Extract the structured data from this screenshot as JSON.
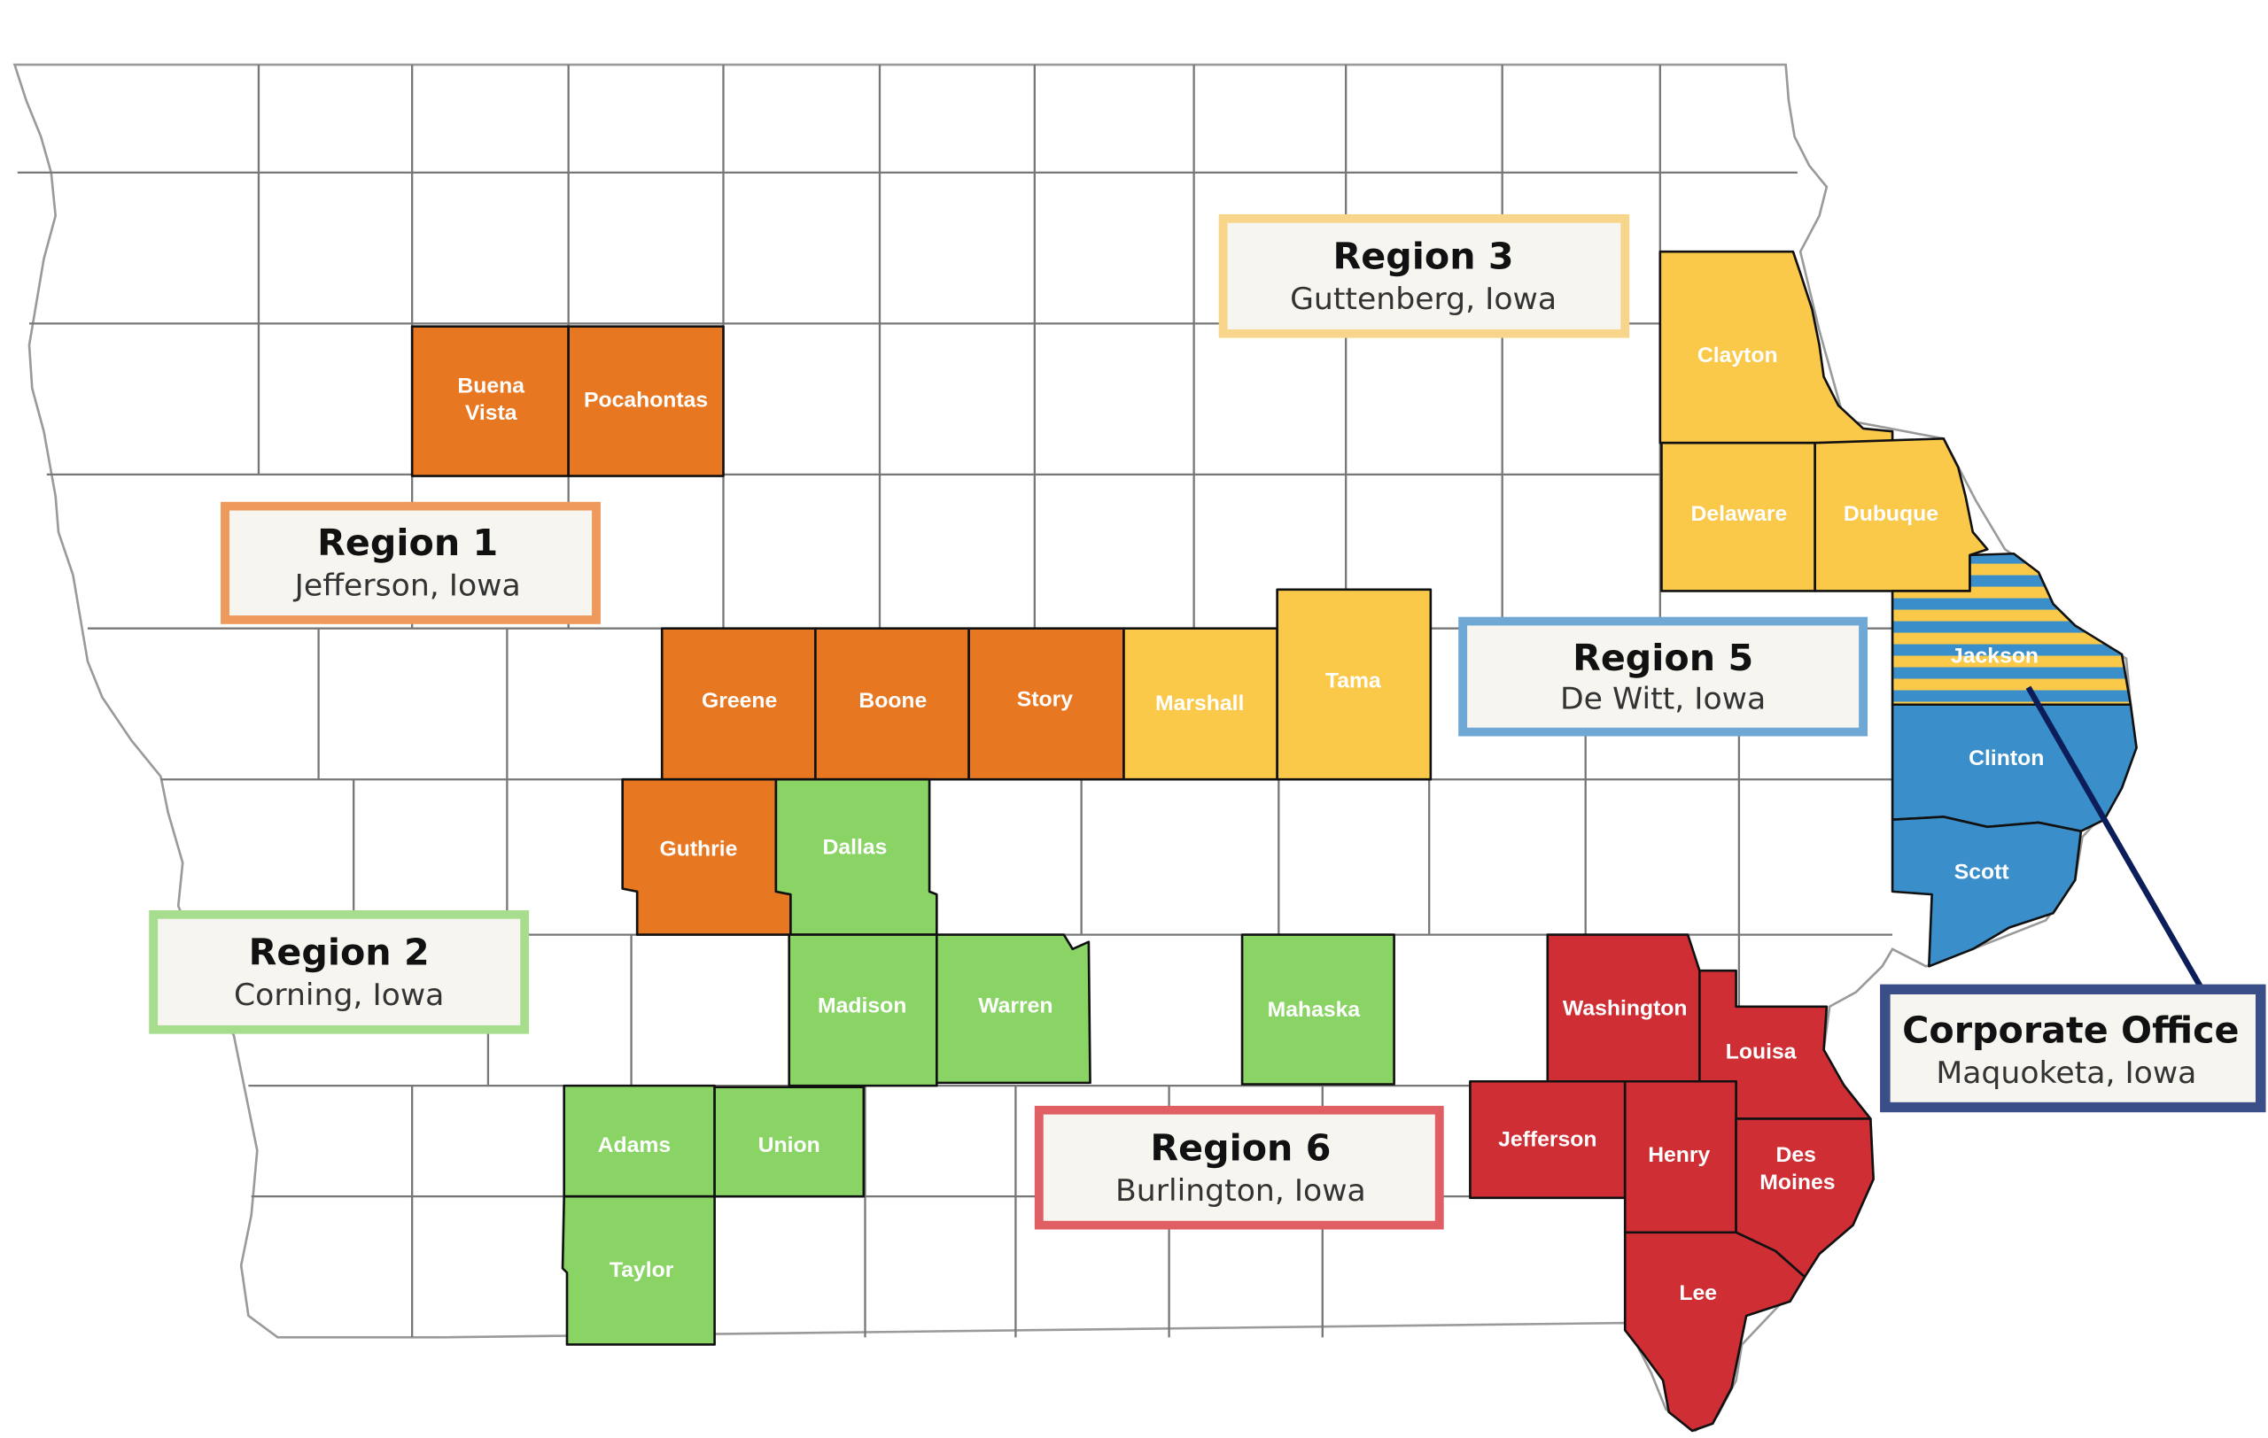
{
  "colors": {
    "region1": "#E87722",
    "region2": "#8AD465",
    "region3": "#FBC94A",
    "region5": "#3A8FCB",
    "region6": "#CE2E34",
    "office": "#3A4F87",
    "box_region1_border": "#EE9A5C",
    "box_region2_border": "#A7DE8E",
    "box_region3_border": "#F7D68C",
    "box_region5_border": "#6FA8D4",
    "box_region6_border": "#DF5F64",
    "box_office_border": "#3A4F87",
    "pointer_line": "#0B1E5A"
  },
  "regions": {
    "region1": {
      "title": "Region 1",
      "city": "Jefferson, Iowa"
    },
    "region2": {
      "title": "Region 2",
      "city": "Corning, Iowa"
    },
    "region3": {
      "title": "Region 3",
      "city": "Guttenberg, Iowa"
    },
    "region5": {
      "title": "Region 5",
      "city": "De Witt, Iowa"
    },
    "region6": {
      "title": "Region 6",
      "city": "Burlington, Iowa"
    },
    "office": {
      "title": "Corporate Office",
      "city": "Maquoketa, Iowa"
    }
  },
  "counties": {
    "buena_vista_1": "Buena",
    "buena_vista_2": "Vista",
    "pocahontas": "Pocahontas",
    "greene": "Greene",
    "boone": "Boone",
    "story": "Story",
    "guthrie": "Guthrie",
    "dallas": "Dallas",
    "madison": "Madison",
    "warren": "Warren",
    "mahaska": "Mahaska",
    "adams": "Adams",
    "union": "Union",
    "taylor": "Taylor",
    "marshall": "Marshall",
    "tama": "Tama",
    "clayton": "Clayton",
    "delaware": "Delaware",
    "dubuque": "Dubuque",
    "jackson": "Jackson",
    "clinton": "Clinton",
    "scott": "Scott",
    "washington": "Washington",
    "louisa": "Louisa",
    "jefferson": "Jefferson",
    "henry": "Henry",
    "des_moines_1": "Des",
    "des_moines_2": "Moines",
    "lee": "Lee"
  }
}
